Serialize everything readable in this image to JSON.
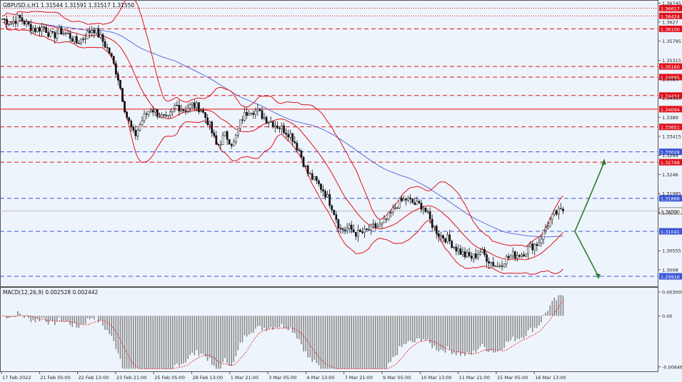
{
  "header": {
    "price_title": "GBPUSD.s,H1  1.31544 1.31591 1.31517 1.31550",
    "macd_title": "MACD(12,26,9) 0.002528 0.002442"
  },
  "colors": {
    "background": "#eef4fb",
    "candle": "#111111",
    "bollinger": "#e0101b",
    "moving_average": "#4a62d8",
    "resistance": "#e0101b",
    "support": "#3a55d8",
    "arrow": "#2e7d2e",
    "macd_hist": "#888888",
    "macd_signal": "#e0101b"
  },
  "chart_data": {
    "type": "line",
    "symbol": "GBPUSD.s,H1",
    "ylim": [
      1.2972,
      1.3675
    ],
    "y_ticks": [
      1.36745,
      1.3627,
      1.35795,
      1.35315,
      1.3484,
      1.34365,
      1.3389,
      1.33415,
      1.3294,
      1.3246,
      1.31985,
      1.3151,
      1.30555,
      1.3008
    ],
    "x_ticks": [
      "17 Feb 2022",
      "21 Feb 05:00",
      "22 Feb 13:00",
      "23 Feb 21:00",
      "25 Feb 05:00",
      "28 Feb 13:00",
      "1 Mar 21:00",
      "3 Mar 05:00",
      "4 Mar 13:00",
      "7 Mar 21:00",
      "9 Mar 05:00",
      "10 Mar 13:00",
      "11 Mar 21:00",
      "15 Mar 05:00",
      "16 Mar 13:00"
    ],
    "current_price": 1.3155,
    "price_path": [
      1.3635,
      1.3625,
      1.3638,
      1.362,
      1.3608,
      1.3615,
      1.359,
      1.3605,
      1.3595,
      1.3575,
      1.3592,
      1.3612,
      1.3585,
      1.355,
      1.349,
      1.3395,
      1.334,
      1.3385,
      1.3412,
      1.3395,
      1.338,
      1.342,
      1.3408,
      1.342,
      1.3412,
      1.3375,
      1.3315,
      1.3345,
      1.332,
      1.3385,
      1.341,
      1.3402,
      1.3385,
      1.3372,
      1.336,
      1.3345,
      1.3305,
      1.325,
      1.3228,
      1.3205,
      1.3165,
      1.3108,
      1.3112,
      1.3098,
      1.3102,
      1.3115,
      1.3118,
      1.3145,
      1.3175,
      1.3185,
      1.3172,
      1.3168,
      1.3125,
      1.3095,
      1.3085,
      1.3062,
      1.3045,
      1.3038,
      1.3055,
      1.3032,
      1.3015,
      1.3035,
      1.3045,
      1.3048,
      1.3065,
      1.3075,
      1.3118,
      1.3148,
      1.3155
    ],
    "resistance_levels": [
      1.36617,
      1.36424,
      1.361,
      1.3516,
      1.34895,
      1.34434,
      1.34094,
      1.33651,
      1.32768
    ],
    "support_levels": [
      1.33028,
      1.31866,
      1.31041,
      1.29916
    ],
    "annotation": "Projected paths: up toward 1.32768, down toward 1.29916",
    "macd": {
      "ylim": [
        -0.00685,
        0.0031
      ],
      "ticks": [
        "0.003009",
        "0.00",
        "-0.006465"
      ],
      "current_hist": 0.002528,
      "current_signal": 0.002442
    }
  }
}
